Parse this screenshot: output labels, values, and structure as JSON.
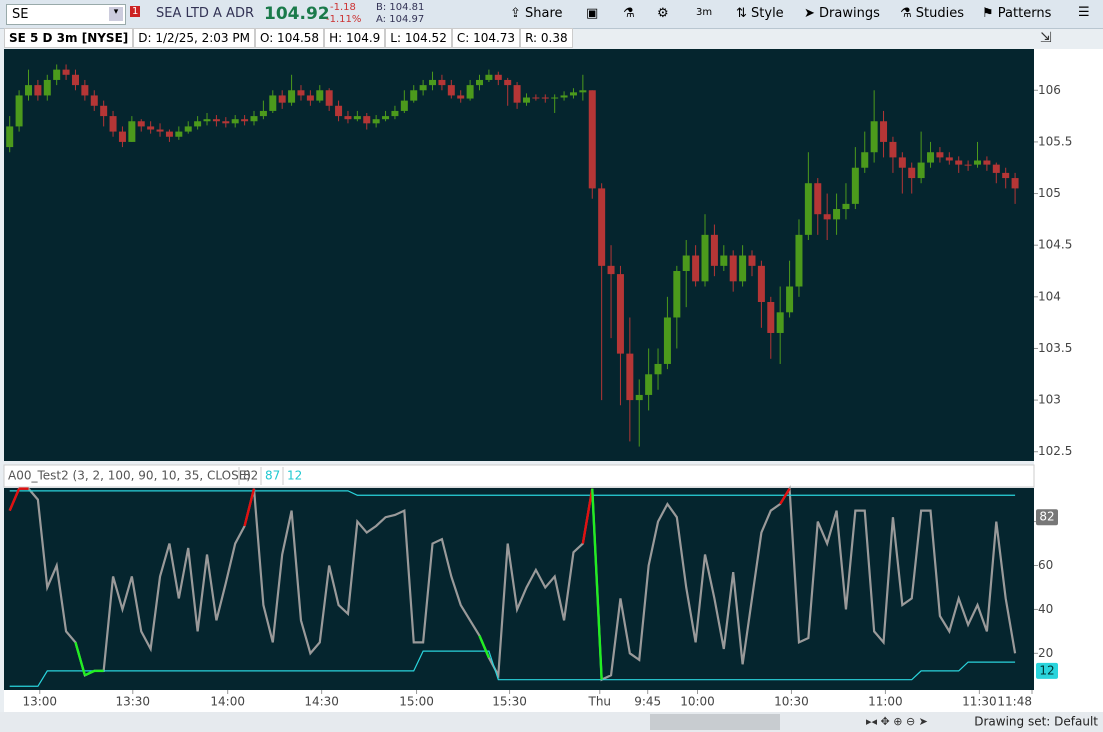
{
  "toolbar": {
    "symbol": "SE",
    "alert_count": "1",
    "company": "SEA LTD A ADR",
    "last": "104.92",
    "change": "-1.18",
    "change_pct": "-1.11%",
    "bid": "B: 104.81",
    "ask": "A: 104.97",
    "buttons": [
      "Share",
      "3m",
      "Style",
      "Drawings",
      "Studies",
      "Patterns"
    ]
  },
  "info_bar": [
    "SE 5 D 3m [NYSE]",
    "D: 1/2/25, 2:03 PM",
    "O: 104.58",
    "H: 104.9",
    "L: 104.52",
    "C: 104.73",
    "R: 0.38"
  ],
  "status": "Drawing set: Default",
  "chart_data": [
    {
      "type": "candlestick",
      "up_color": "#4c9a1c",
      "down_color": "#b53636",
      "background": "#05252e",
      "xlim": [
        -0.5,
        108.8
      ],
      "ylim": [
        102.42,
        106.39
      ],
      "yticks": [
        102.5,
        103,
        103.5,
        104,
        104.5,
        105,
        105.5,
        106
      ],
      "open": [
        105.45,
        105.65,
        105.95,
        106.05,
        105.95,
        106.1,
        106.2,
        106.15,
        106.05,
        105.95,
        105.85,
        105.75,
        105.6,
        105.5,
        105.7,
        105.65,
        105.62,
        105.6,
        105.55,
        105.6,
        105.65,
        105.7,
        105.72,
        105.7,
        105.68,
        105.72,
        105.7,
        105.75,
        105.8,
        105.95,
        105.88,
        106.0,
        105.95,
        105.9,
        106.0,
        105.85,
        105.75,
        105.72,
        105.75,
        105.68,
        105.72,
        105.75,
        105.8,
        105.9,
        106.0,
        106.05,
        106.1,
        106.05,
        105.95,
        105.92,
        106.05,
        106.1,
        106.15,
        106.1,
        106.05,
        105.88,
        105.93,
        105.93,
        105.92,
        105.93,
        105.95,
        105.98,
        106.0,
        105.05,
        104.3,
        104.22,
        103.45,
        103.0,
        103.05,
        103.25,
        103.35,
        103.8,
        104.25,
        104.4,
        104.15,
        104.6,
        104.3,
        104.4,
        104.15,
        104.4,
        104.3,
        103.95,
        103.65,
        103.85,
        104.1,
        104.6,
        105.1,
        104.8,
        104.75,
        104.85,
        104.9,
        105.25,
        105.4,
        105.7,
        105.5,
        105.35,
        105.25,
        105.15,
        105.3,
        105.4,
        105.35,
        105.32,
        105.28,
        105.28,
        105.32,
        105.28,
        105.2,
        105.15
      ],
      "high": [
        105.75,
        106.0,
        106.2,
        106.1,
        106.15,
        106.25,
        106.25,
        106.2,
        106.1,
        106.0,
        105.9,
        105.8,
        105.65,
        105.75,
        105.72,
        105.7,
        105.68,
        105.62,
        105.65,
        105.7,
        105.75,
        105.78,
        105.76,
        105.74,
        105.76,
        105.76,
        105.8,
        105.9,
        106.0,
        106.0,
        106.15,
        106.05,
        106.0,
        106.05,
        106.02,
        105.9,
        105.8,
        105.8,
        105.78,
        105.76,
        105.8,
        105.85,
        106.0,
        106.05,
        106.1,
        106.18,
        106.15,
        106.1,
        106.0,
        106.1,
        106.15,
        106.2,
        106.18,
        106.12,
        106.08,
        105.97,
        105.96,
        105.96,
        105.96,
        105.99,
        106.02,
        106.15,
        106.0,
        105.1,
        104.5,
        104.3,
        103.8,
        103.2,
        103.5,
        103.5,
        104.0,
        104.3,
        104.55,
        104.5,
        104.8,
        104.7,
        104.5,
        104.45,
        104.5,
        104.45,
        104.35,
        104.0,
        104.1,
        104.35,
        104.75,
        105.4,
        105.15,
        105.0,
        105.0,
        105.1,
        105.45,
        105.6,
        106.0,
        105.8,
        105.55,
        105.4,
        105.3,
        105.6,
        105.5,
        105.45,
        105.4,
        105.36,
        105.32,
        105.5,
        105.36,
        105.3,
        105.25,
        105.2
      ],
      "low": [
        105.4,
        105.6,
        105.9,
        105.9,
        105.9,
        106.05,
        106.1,
        106.0,
        105.9,
        105.8,
        105.65,
        105.55,
        105.45,
        105.5,
        105.6,
        105.58,
        105.55,
        105.5,
        105.52,
        105.58,
        105.62,
        105.66,
        105.65,
        105.64,
        105.64,
        105.66,
        105.66,
        105.72,
        105.78,
        105.82,
        105.85,
        105.9,
        105.85,
        105.88,
        105.8,
        105.7,
        105.68,
        105.7,
        105.62,
        105.64,
        105.7,
        105.72,
        105.78,
        105.88,
        105.95,
        106.0,
        106.0,
        105.92,
        105.88,
        105.9,
        106.0,
        106.08,
        106.05,
        105.85,
        105.82,
        105.85,
        105.9,
        105.88,
        105.78,
        105.9,
        105.92,
        105.9,
        104.95,
        103.0,
        103.6,
        102.95,
        102.6,
        102.55,
        102.9,
        103.1,
        103.3,
        103.5,
        103.9,
        104.1,
        104.1,
        104.2,
        104.25,
        104.05,
        104.1,
        104.2,
        103.7,
        103.4,
        103.35,
        103.8,
        104.0,
        104.55,
        104.6,
        104.55,
        104.6,
        104.75,
        104.85,
        105.2,
        105.3,
        105.35,
        105.2,
        105.0,
        105.0,
        105.1,
        105.25,
        105.3,
        105.28,
        105.2,
        105.22,
        105.25,
        105.22,
        105.1,
        105.05,
        104.9
      ],
      "close": [
        105.65,
        105.95,
        106.05,
        105.95,
        106.1,
        106.2,
        106.15,
        106.05,
        105.95,
        105.85,
        105.75,
        105.6,
        105.5,
        105.7,
        105.65,
        105.62,
        105.6,
        105.55,
        105.6,
        105.65,
        105.7,
        105.72,
        105.7,
        105.68,
        105.72,
        105.7,
        105.75,
        105.8,
        105.95,
        105.88,
        106.0,
        105.95,
        105.9,
        106.0,
        105.85,
        105.75,
        105.72,
        105.75,
        105.68,
        105.72,
        105.75,
        105.8,
        105.9,
        106.0,
        106.05,
        106.1,
        106.05,
        105.95,
        105.92,
        106.05,
        106.1,
        106.15,
        106.1,
        106.05,
        105.88,
        105.93,
        105.93,
        105.92,
        105.93,
        105.95,
        105.98,
        106.0,
        105.05,
        104.3,
        104.22,
        103.45,
        103.0,
        103.05,
        103.25,
        103.35,
        103.8,
        104.25,
        104.4,
        104.15,
        104.6,
        104.3,
        104.4,
        104.15,
        104.4,
        104.3,
        103.95,
        103.65,
        103.85,
        104.1,
        104.6,
        105.1,
        104.8,
        104.75,
        104.85,
        104.9,
        105.25,
        105.4,
        105.7,
        105.5,
        105.35,
        105.25,
        105.15,
        105.3,
        105.4,
        105.35,
        105.32,
        105.28,
        105.28,
        105.32,
        105.28,
        105.2,
        105.15,
        105.05
      ]
    },
    {
      "type": "line",
      "title": "A00_Test2 (3, 2, 100, 90, 10, 35, CLOSE)",
      "legend_values": [
        82,
        87,
        12
      ],
      "legend_colors": [
        "#555555",
        "#1ec8d0",
        "#1ec8d0"
      ],
      "xlim": [
        -0.5,
        108.8
      ],
      "ylim": [
        3.3,
        95.3
      ],
      "yticks": [
        20,
        40,
        60,
        80
      ],
      "xticks": [
        {
          "value": 3.2,
          "label": "13:00"
        },
        {
          "value": 13.1,
          "label": "13:30"
        },
        {
          "value": 23.2,
          "label": "14:00"
        },
        {
          "value": 33.2,
          "label": "14:30"
        },
        {
          "value": 43.3,
          "label": "15:00"
        },
        {
          "value": 53.2,
          "label": "15:30"
        },
        {
          "value": 62.8,
          "label": "Thu"
        },
        {
          "value": 67.9,
          "label": "9:45"
        },
        {
          "value": 73.2,
          "label": "10:00"
        },
        {
          "value": 83.2,
          "label": "10:30"
        },
        {
          "value": 93.2,
          "label": "11:00"
        },
        {
          "value": 103.2,
          "label": "11:30"
        },
        {
          "value": 108.8,
          "label": "11:48"
        }
      ],
      "up_signal_color": "#e01010",
      "down_signal_color": "#22ee22",
      "series": [
        {
          "name": "oscillator",
          "color": "#9a9a9a",
          "values": [
            85,
            95,
            95,
            90,
            50,
            60,
            30,
            25,
            10,
            12,
            12,
            55,
            40,
            55,
            30,
            22,
            55,
            70,
            45,
            68,
            30,
            65,
            35,
            52,
            70,
            78,
            95,
            42,
            25,
            65,
            85,
            35,
            20,
            25,
            60,
            42,
            38,
            80,
            75,
            78,
            82,
            83,
            85,
            25,
            25,
            70,
            72,
            55,
            42,
            35,
            28,
            18,
            10,
            70,
            40,
            50,
            58,
            50,
            55,
            35,
            66,
            70,
            95,
            8,
            10,
            45,
            20,
            17,
            60,
            80,
            88,
            82,
            50,
            25,
            65,
            45,
            22,
            57,
            15,
            45,
            75,
            85,
            88,
            95,
            25,
            27,
            80,
            70,
            85,
            40,
            85,
            85,
            30,
            25,
            82,
            42,
            45,
            85,
            85,
            37,
            30,
            45,
            33,
            42,
            30,
            80,
            45,
            20
          ]
        },
        {
          "name": "upper",
          "color": "#2ad4dc",
          "values": [
            94,
            94,
            94,
            94,
            94,
            94,
            94,
            94,
            94,
            94,
            94,
            94,
            94,
            94,
            94,
            94,
            94,
            94,
            94,
            94,
            94,
            94,
            94,
            94,
            94,
            94,
            94,
            94,
            94,
            94,
            94,
            94,
            94,
            94,
            94,
            94,
            94,
            92,
            92,
            92,
            92,
            92,
            92,
            92,
            92,
            92,
            92,
            92,
            92,
            92,
            92,
            92,
            92,
            92,
            92,
            92,
            92,
            92,
            92,
            92,
            92,
            92,
            92,
            92,
            92,
            92,
            92,
            92,
            92,
            92,
            92,
            92,
            92,
            92,
            92,
            92,
            92,
            92,
            92,
            92,
            92,
            92,
            92,
            92,
            92,
            92,
            92,
            92,
            92,
            92,
            92,
            92,
            92,
            92,
            92,
            92,
            92,
            92,
            92,
            92,
            92,
            92,
            92,
            92,
            92,
            92,
            92,
            92
          ]
        },
        {
          "name": "lower",
          "color": "#2ad4dc",
          "values": [
            5,
            5,
            5,
            5,
            12,
            12,
            12,
            12,
            12,
            12,
            12,
            12,
            12,
            12,
            12,
            12,
            12,
            12,
            12,
            12,
            12,
            12,
            12,
            12,
            12,
            12,
            12,
            12,
            12,
            12,
            12,
            12,
            12,
            12,
            12,
            12,
            12,
            12,
            12,
            12,
            12,
            12,
            12,
            12,
            21,
            21,
            21,
            21,
            21,
            21,
            21,
            21,
            8,
            8,
            8,
            8,
            8,
            8,
            8,
            8,
            8,
            8,
            8,
            8,
            8,
            8,
            8,
            8,
            8,
            8,
            8,
            8,
            8,
            8,
            8,
            8,
            8,
            8,
            8,
            8,
            8,
            8,
            8,
            8,
            8,
            8,
            8,
            8,
            8,
            8,
            8,
            8,
            8,
            8,
            8,
            8,
            8,
            12,
            12,
            12,
            12,
            12,
            16,
            16,
            16,
            16,
            16,
            16
          ]
        }
      ]
    }
  ]
}
